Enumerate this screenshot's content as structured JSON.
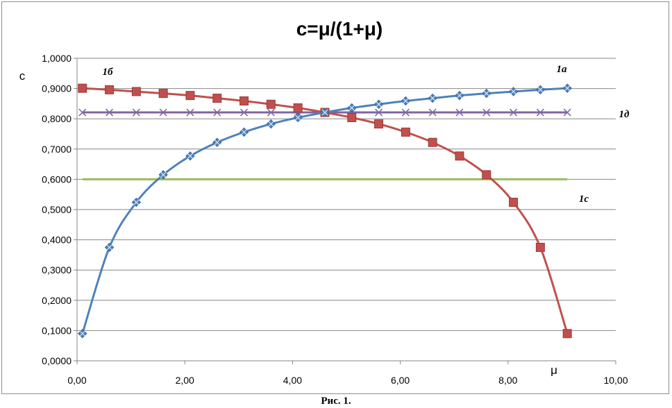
{
  "chart_data": {
    "type": "line",
    "title": "c=μ/(1+μ)",
    "xlabel": "μ",
    "ylabel": "c",
    "xlim": [
      0,
      10
    ],
    "ylim": [
      0,
      1
    ],
    "x_ticks": [
      "0,00",
      "2,00",
      "4,00",
      "6,00",
      "8,00",
      "10,00"
    ],
    "y_ticks": [
      "0,0000",
      "0,1000",
      "0,2000",
      "0,3000",
      "0,4000",
      "0,5000",
      "0,6000",
      "0,7000",
      "0,8000",
      "0,9000",
      "1,0000"
    ],
    "grid": "horizontal",
    "series": [
      {
        "name": "1а",
        "color": "#4f81bd",
        "marker": "diamond-x",
        "x": [
          0.1,
          0.6,
          1.1,
          1.6,
          2.1,
          2.6,
          3.1,
          3.6,
          4.1,
          4.6,
          5.1,
          5.6,
          6.1,
          6.6,
          7.1,
          7.6,
          8.1,
          8.6,
          9.1
        ],
        "values": [
          0.09,
          0.375,
          0.524,
          0.615,
          0.677,
          0.722,
          0.756,
          0.783,
          0.804,
          0.821,
          0.836,
          0.848,
          0.859,
          0.868,
          0.877,
          0.884,
          0.89,
          0.896,
          0.901
        ]
      },
      {
        "name": "1б",
        "color": "#c0504d",
        "marker": "square",
        "x": [
          0.1,
          0.6,
          1.1,
          1.6,
          2.1,
          2.6,
          3.1,
          3.6,
          4.1,
          4.6,
          5.1,
          5.6,
          6.1,
          6.6,
          7.1,
          7.6,
          8.1,
          8.6,
          9.1
        ],
        "values": [
          0.901,
          0.896,
          0.89,
          0.884,
          0.877,
          0.868,
          0.859,
          0.848,
          0.836,
          0.821,
          0.804,
          0.783,
          0.756,
          0.722,
          0.677,
          0.615,
          0.524,
          0.375,
          0.09
        ]
      },
      {
        "name": "1д",
        "color": "#8064a2",
        "marker": "x",
        "x": [
          0.1,
          0.6,
          1.1,
          1.6,
          2.1,
          2.6,
          3.1,
          3.6,
          4.1,
          4.6,
          5.1,
          5.6,
          6.1,
          6.6,
          7.1,
          7.6,
          8.1,
          8.6,
          9.1
        ],
        "values": [
          0.821,
          0.821,
          0.821,
          0.821,
          0.821,
          0.821,
          0.821,
          0.821,
          0.821,
          0.821,
          0.821,
          0.821,
          0.821,
          0.821,
          0.821,
          0.821,
          0.821,
          0.821,
          0.821
        ]
      },
      {
        "name": "1с",
        "color": "#9bbb59",
        "marker": "none",
        "x": [
          0.1,
          9.1
        ],
        "values": [
          0.6,
          0.6
        ]
      }
    ]
  },
  "caption": "Рис. 1."
}
